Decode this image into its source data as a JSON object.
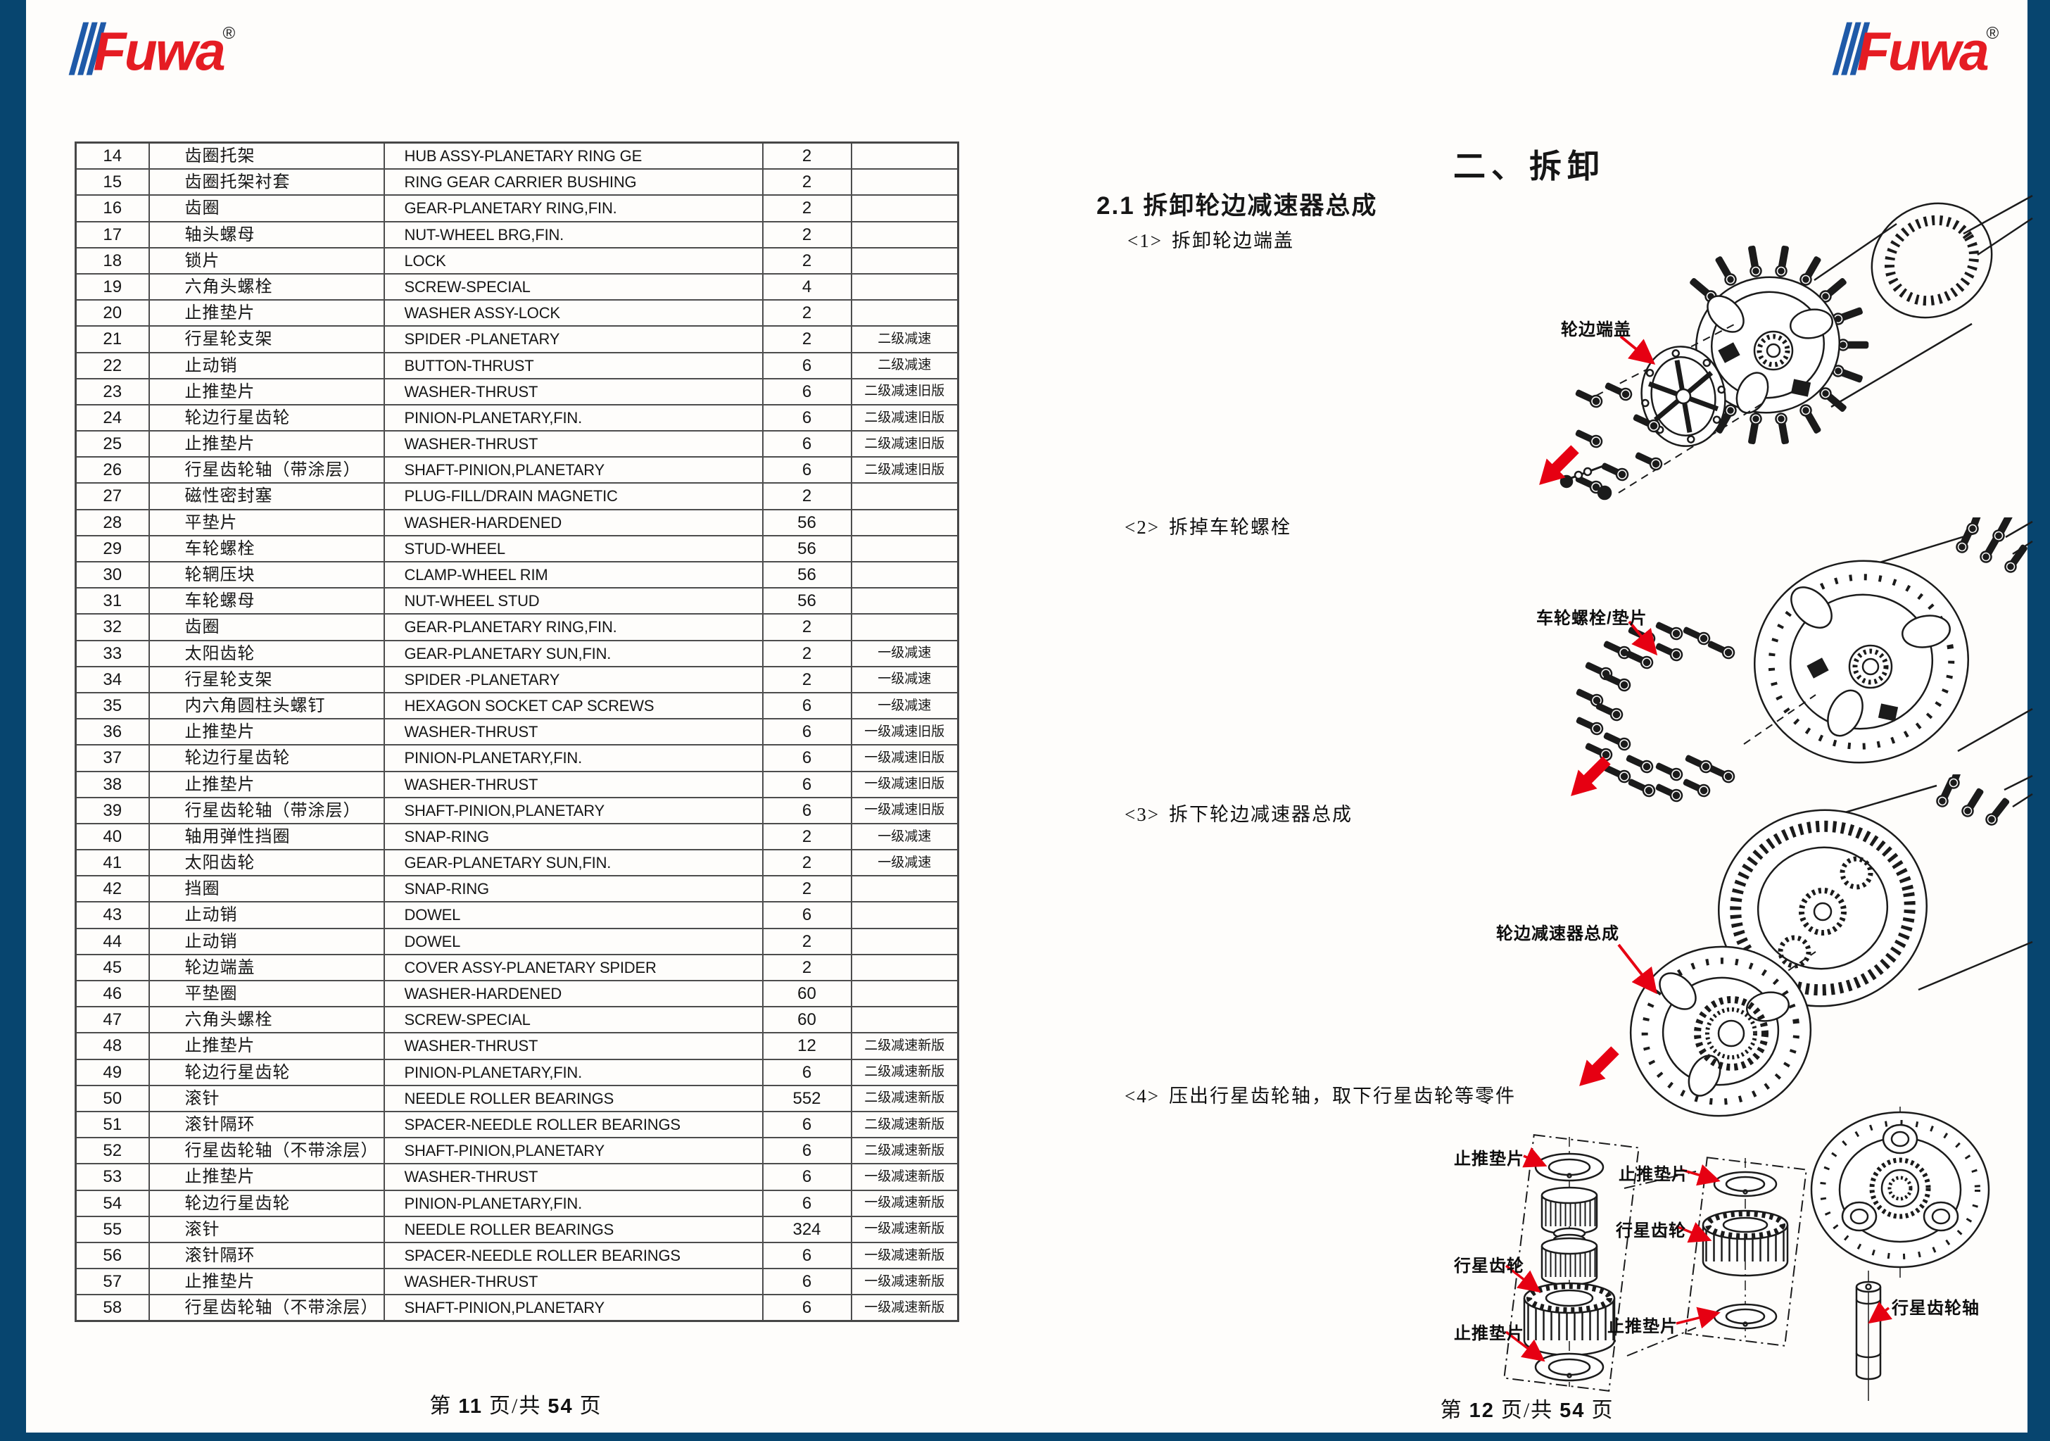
{
  "logo": {
    "text": "Fuwa",
    "reg": "®"
  },
  "colors": {
    "brand_red": "#e51c23",
    "frame_blue": "#07456f",
    "arrow_red": "#e60012",
    "table_border": "#4d4d4d"
  },
  "left_page": {
    "table_rows": [
      {
        "no": "14",
        "cn": "齿圈托架",
        "en": "HUB ASSY-PLANETARY RING GE",
        "qty": "2",
        "note": ""
      },
      {
        "no": "15",
        "cn": "齿圈托架衬套",
        "en": "RING GEAR CARRIER BUSHING",
        "qty": "2",
        "note": ""
      },
      {
        "no": "16",
        "cn": "齿圈",
        "en": "GEAR-PLANETARY RING,FIN.",
        "qty": "2",
        "note": ""
      },
      {
        "no": "17",
        "cn": "轴头螺母",
        "en": "NUT-WHEEL BRG,FIN.",
        "qty": "2",
        "note": ""
      },
      {
        "no": "18",
        "cn": "锁片",
        "en": "LOCK",
        "qty": "2",
        "note": ""
      },
      {
        "no": "19",
        "cn": "六角头螺栓",
        "en": "SCREW-SPECIAL",
        "qty": "4",
        "note": ""
      },
      {
        "no": "20",
        "cn": "止推垫片",
        "en": "WASHER ASSY-LOCK",
        "qty": "2",
        "note": ""
      },
      {
        "no": "21",
        "cn": "行星轮支架",
        "en": "SPIDER -PLANETARY",
        "qty": "2",
        "note": "二级减速"
      },
      {
        "no": "22",
        "cn": "止动销",
        "en": "BUTTON-THRUST",
        "qty": "6",
        "note": "二级减速"
      },
      {
        "no": "23",
        "cn": "止推垫片",
        "en": "WASHER-THRUST",
        "qty": "6",
        "note": "二级减速旧版"
      },
      {
        "no": "24",
        "cn": "轮边行星齿轮",
        "en": "PINION-PLANETARY,FIN.",
        "qty": "6",
        "note": "二级减速旧版"
      },
      {
        "no": "25",
        "cn": "止推垫片",
        "en": "WASHER-THRUST",
        "qty": "6",
        "note": "二级减速旧版"
      },
      {
        "no": "26",
        "cn": "行星齿轮轴（带涂层）",
        "en": "SHAFT-PINION,PLANETARY",
        "qty": "6",
        "note": "二级减速旧版"
      },
      {
        "no": "27",
        "cn": "磁性密封塞",
        "en": "PLUG-FILL/DRAIN MAGNETIC",
        "qty": "2",
        "note": ""
      },
      {
        "no": "28",
        "cn": "平垫片",
        "en": "WASHER-HARDENED",
        "qty": "56",
        "note": ""
      },
      {
        "no": "29",
        "cn": "车轮螺栓",
        "en": "STUD-WHEEL",
        "qty": "56",
        "note": ""
      },
      {
        "no": "30",
        "cn": "轮辋压块",
        "en": "CLAMP-WHEEL RIM",
        "qty": "56",
        "note": ""
      },
      {
        "no": "31",
        "cn": "车轮螺母",
        "en": "NUT-WHEEL STUD",
        "qty": "56",
        "note": ""
      },
      {
        "no": "32",
        "cn": "齿圈",
        "en": "GEAR-PLANETARY RING,FIN.",
        "qty": "2",
        "note": ""
      },
      {
        "no": "33",
        "cn": "太阳齿轮",
        "en": "GEAR-PLANETARY SUN,FIN.",
        "qty": "2",
        "note": "一级减速"
      },
      {
        "no": "34",
        "cn": "行星轮支架",
        "en": "SPIDER -PLANETARY",
        "qty": "2",
        "note": "一级减速"
      },
      {
        "no": "35",
        "cn": "内六角圆柱头螺钉",
        "en": "HEXAGON SOCKET CAP SCREWS",
        "qty": "6",
        "note": "一级减速"
      },
      {
        "no": "36",
        "cn": "止推垫片",
        "en": "WASHER-THRUST",
        "qty": "6",
        "note": "一级减速旧版"
      },
      {
        "no": "37",
        "cn": "轮边行星齿轮",
        "en": "PINION-PLANETARY,FIN.",
        "qty": "6",
        "note": "一级减速旧版"
      },
      {
        "no": "38",
        "cn": "止推垫片",
        "en": "WASHER-THRUST",
        "qty": "6",
        "note": "一级减速旧版"
      },
      {
        "no": "39",
        "cn": "行星齿轮轴（带涂层）",
        "en": "SHAFT-PINION,PLANETARY",
        "qty": "6",
        "note": "一级减速旧版"
      },
      {
        "no": "40",
        "cn": "轴用弹性挡圈",
        "en": "SNAP-RING",
        "qty": "2",
        "note": "一级减速"
      },
      {
        "no": "41",
        "cn": "太阳齿轮",
        "en": "GEAR-PLANETARY SUN,FIN.",
        "qty": "2",
        "note": "一级减速"
      },
      {
        "no": "42",
        "cn": "挡圈",
        "en": "SNAP-RING",
        "qty": "2",
        "note": ""
      },
      {
        "no": "43",
        "cn": "止动销",
        "en": "DOWEL",
        "qty": "6",
        "note": ""
      },
      {
        "no": "44",
        "cn": "止动销",
        "en": "DOWEL",
        "qty": "2",
        "note": ""
      },
      {
        "no": "45",
        "cn": "轮边端盖",
        "en": "COVER ASSY-PLANETARY SPIDER",
        "qty": "2",
        "note": ""
      },
      {
        "no": "46",
        "cn": "平垫圈",
        "en": "WASHER-HARDENED",
        "qty": "60",
        "note": ""
      },
      {
        "no": "47",
        "cn": "六角头螺栓",
        "en": "SCREW-SPECIAL",
        "qty": "60",
        "note": ""
      },
      {
        "no": "48",
        "cn": "止推垫片",
        "en": "WASHER-THRUST",
        "qty": "12",
        "note": "二级减速新版"
      },
      {
        "no": "49",
        "cn": "轮边行星齿轮",
        "en": "PINION-PLANETARY,FIN.",
        "qty": "6",
        "note": "二级减速新版"
      },
      {
        "no": "50",
        "cn": "滚针",
        "en": "NEEDLE ROLLER BEARINGS",
        "qty": "552",
        "note": "二级减速新版"
      },
      {
        "no": "51",
        "cn": "滚针隔环",
        "en": "SPACER-NEEDLE ROLLER BEARINGS",
        "qty": "6",
        "note": "二级减速新版"
      },
      {
        "no": "52",
        "cn": "行星齿轮轴（不带涂层）",
        "en": "SHAFT-PINION,PLANETARY",
        "qty": "6",
        "note": "二级减速新版"
      },
      {
        "no": "53",
        "cn": "止推垫片",
        "en": "WASHER-THRUST",
        "qty": "6",
        "note": "一级减速新版"
      },
      {
        "no": "54",
        "cn": "轮边行星齿轮",
        "en": "PINION-PLANETARY,FIN.",
        "qty": "6",
        "note": "一级减速新版"
      },
      {
        "no": "55",
        "cn": "滚针",
        "en": "NEEDLE ROLLER BEARINGS",
        "qty": "324",
        "note": "一级减速新版"
      },
      {
        "no": "56",
        "cn": "滚针隔环",
        "en": "SPACER-NEEDLE ROLLER BEARINGS",
        "qty": "6",
        "note": "一级减速新版"
      },
      {
        "no": "57",
        "cn": "止推垫片",
        "en": "WASHER-THRUST",
        "qty": "6",
        "note": "一级减速新版"
      },
      {
        "no": "58",
        "cn": "行星齿轮轴（不带涂层）",
        "en": "SHAFT-PINION,PLANETARY",
        "qty": "6",
        "note": "一级减速新版"
      }
    ],
    "footer": {
      "f1": "第",
      "page": "11",
      "f2": "页/共",
      "total": "54",
      "f3": "页"
    }
  },
  "right_page": {
    "section_title": "二、拆卸",
    "subsection_title": "2.1 拆卸轮边减速器总成",
    "steps": [
      {
        "label": "<1>",
        "text": "拆卸轮边端盖"
      },
      {
        "label": "<2>",
        "text": "拆掉车轮螺栓"
      },
      {
        "label": "<3>",
        "text": "拆下轮边减速器总成"
      },
      {
        "label": "<4>",
        "text": "压出行星齿轮轴，取下行星齿轮等零件"
      }
    ],
    "labels": {
      "end_cover": "轮边端盖",
      "wheel_bolt_washer": "车轮螺栓/垫片",
      "reducer_assembly": "轮边减速器总成",
      "thrust_washer": "止推垫片",
      "planet_gear": "行星齿轮",
      "planet_gear_shaft": "行星齿轮轴"
    },
    "footer": {
      "f1": "第",
      "page": "12",
      "f2": "页/共",
      "total": "54",
      "f3": "页"
    }
  }
}
